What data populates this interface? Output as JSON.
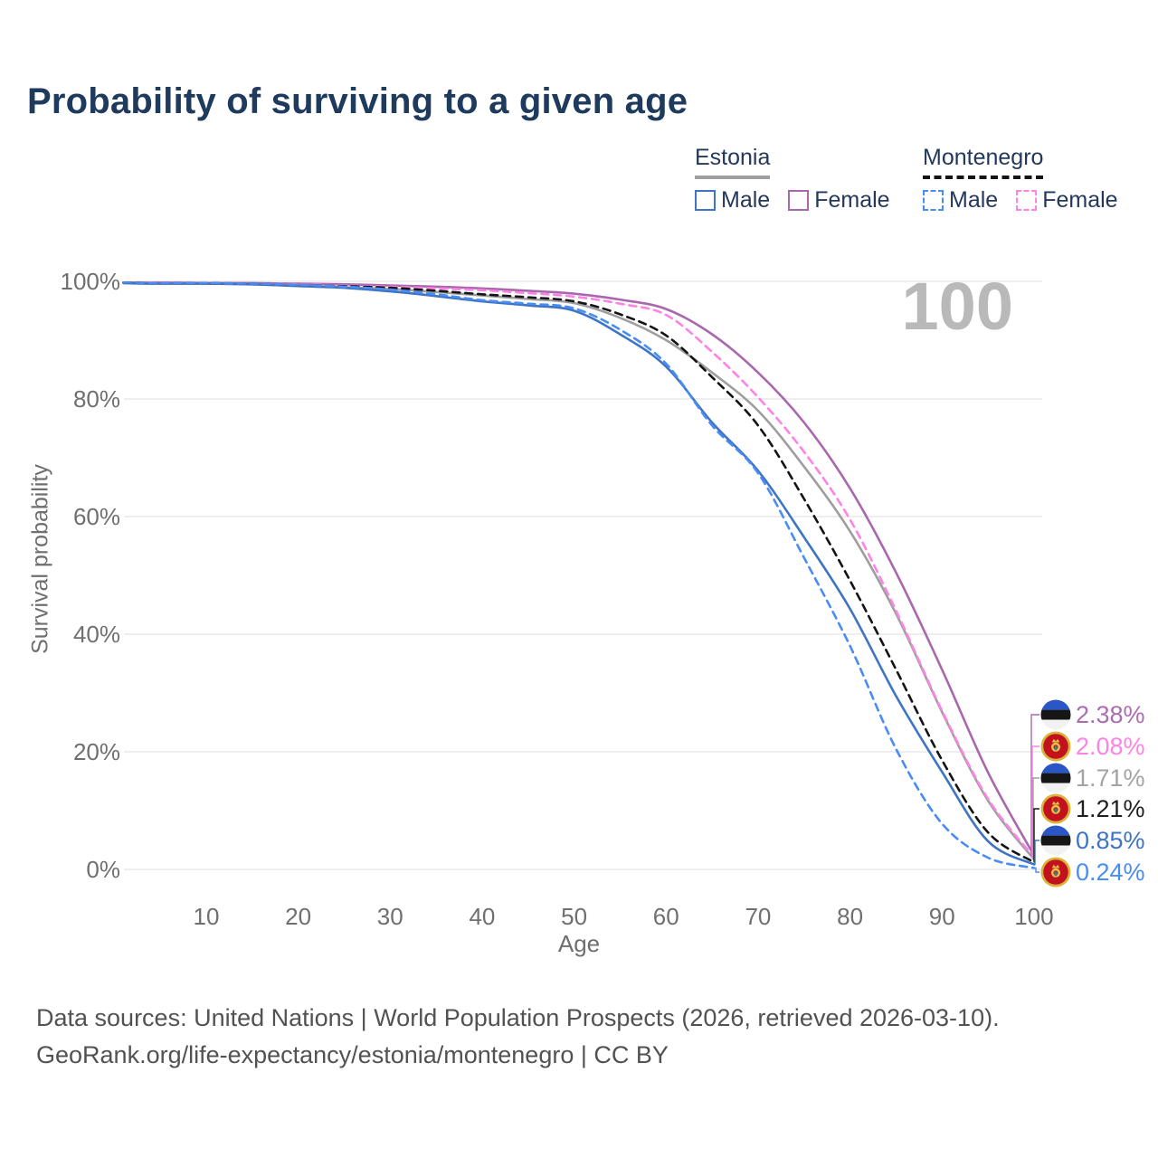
{
  "title": "Probability of surviving to a given age",
  "watermark": "100",
  "legend": {
    "groups": [
      {
        "label": "Estonia",
        "line_style": "solid",
        "line_color": "#9e9e9e",
        "items": [
          {
            "label": "Male",
            "color": "#3e74c4",
            "dashed": false
          },
          {
            "label": "Female",
            "color": "#a968ad",
            "dashed": false
          }
        ]
      },
      {
        "label": "Montenegro",
        "line_style": "dashed",
        "line_color": "#141414",
        "items": [
          {
            "label": "Male",
            "color": "#4a8cf5",
            "dashed": true
          },
          {
            "label": "Female",
            "color": "#ff82e5",
            "dashed": true
          }
        ]
      }
    ]
  },
  "y_axis": {
    "title": "Survival probability",
    "ticks": [
      "100%",
      "80%",
      "60%",
      "40%",
      "20%",
      "0%"
    ]
  },
  "x_axis": {
    "title": "Age",
    "ticks": [
      10,
      20,
      30,
      40,
      50,
      60,
      70,
      80,
      90,
      100
    ]
  },
  "end_labels": [
    {
      "flag": "estonia",
      "value": "2.38%",
      "color": "#ab6db2"
    },
    {
      "flag": "montenegro",
      "value": "2.08%",
      "color": "#ff82e5"
    },
    {
      "flag": "estonia",
      "value": "1.71%",
      "color": "#a3a3a3"
    },
    {
      "flag": "montenegro",
      "value": "1.21%",
      "color": "#1f1f1f"
    },
    {
      "flag": "estonia",
      "value": "0.85%",
      "color": "#3e74c4"
    },
    {
      "flag": "montenegro",
      "value": "0.24%",
      "color": "#4a8cf5"
    }
  ],
  "footer": {
    "line1": "Data sources: United Nations | World Population Prospects (2026, retrieved 2026-03-10).",
    "line2": "GeoRank.org/life-expectancy/estonia/montenegro | CC BY"
  },
  "chart_data": {
    "type": "line",
    "title": "Probability of surviving to a given age",
    "xlabel": "Age",
    "ylabel": "Survival probability",
    "xlim": [
      1,
      100
    ],
    "ylim": [
      0,
      100
    ],
    "grid": "horizontal",
    "legend_position": "top-right",
    "hovered_age": 100,
    "x": [
      1,
      5,
      10,
      15,
      20,
      25,
      30,
      35,
      40,
      45,
      50,
      55,
      60,
      65,
      70,
      75,
      80,
      85,
      90,
      95,
      100
    ],
    "series": [
      {
        "name": "Estonia Female",
        "country": "Estonia",
        "sex": "female",
        "style": "solid",
        "color": "#a968ad",
        "end_label": "2.38%",
        "values": [
          99.8,
          99.8,
          99.7,
          99.7,
          99.6,
          99.5,
          99.3,
          99.1,
          98.8,
          98.4,
          97.9,
          96.9,
          95.3,
          91.0,
          84.5,
          76.0,
          64.8,
          50.5,
          34.0,
          16.5,
          2.38
        ]
      },
      {
        "name": "Montenegro Female",
        "country": "Montenegro",
        "sex": "female",
        "style": "dashed",
        "color": "#ff82e5",
        "end_label": "2.08%",
        "values": [
          99.8,
          99.8,
          99.7,
          99.6,
          99.5,
          99.3,
          99.1,
          98.8,
          98.5,
          98.0,
          97.4,
          96.2,
          94.3,
          88.0,
          80.3,
          71.0,
          59.5,
          44.0,
          27.0,
          12.0,
          2.08
        ]
      },
      {
        "name": "Estonia (both sexes)",
        "country": "Estonia",
        "sex": "both",
        "style": "solid",
        "color": "#9e9e9e",
        "end_label": "1.71%",
        "values": [
          99.7,
          99.7,
          99.6,
          99.5,
          99.3,
          99.0,
          98.7,
          98.2,
          97.6,
          97.0,
          96.3,
          93.8,
          90.0,
          84.5,
          78.0,
          68.5,
          57.5,
          43.5,
          26.8,
          11.7,
          1.71
        ]
      },
      {
        "name": "Montenegro (both sexes)",
        "country": "Montenegro",
        "sex": "both",
        "style": "dashed",
        "color": "#141414",
        "end_label": "1.21%",
        "values": [
          99.8,
          99.7,
          99.7,
          99.6,
          99.4,
          99.2,
          98.9,
          98.4,
          97.8,
          97.3,
          96.6,
          94.4,
          90.8,
          83.7,
          75.5,
          63.0,
          49.1,
          34.0,
          18.6,
          6.3,
          1.21
        ]
      },
      {
        "name": "Estonia Male",
        "country": "Estonia",
        "sex": "male",
        "style": "solid",
        "color": "#3e74c4",
        "end_label": "0.85%",
        "values": [
          99.7,
          99.6,
          99.6,
          99.5,
          99.2,
          98.9,
          98.3,
          97.5,
          96.6,
          95.9,
          95.0,
          91.0,
          85.5,
          76.0,
          67.8,
          56.5,
          44.3,
          29.5,
          16.6,
          4.8,
          0.85
        ]
      },
      {
        "name": "Montenegro Male",
        "country": "Montenegro",
        "sex": "male",
        "style": "dashed",
        "color": "#4a8cf5",
        "end_label": "0.24%",
        "values": [
          99.8,
          99.7,
          99.7,
          99.6,
          99.4,
          99.1,
          98.6,
          97.8,
          96.8,
          96.2,
          95.4,
          91.8,
          86.0,
          75.5,
          67.4,
          53.0,
          38.0,
          20.5,
          7.8,
          2.0,
          0.24
        ]
      }
    ]
  }
}
